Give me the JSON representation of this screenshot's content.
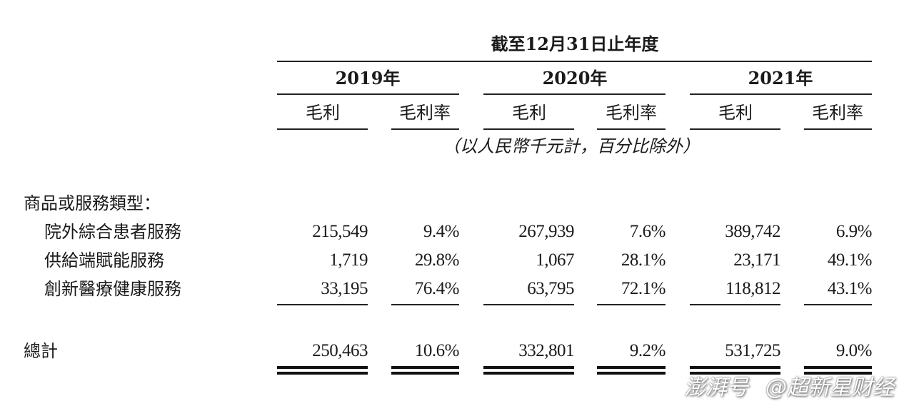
{
  "header": {
    "period": "截至12月31日止年度",
    "years": [
      "2019年",
      "2020年",
      "2021年"
    ],
    "subcols": [
      "毛利",
      "毛利率"
    ],
    "unit_note": "（以人民幣千元計，百分比除外）"
  },
  "section_label": "商品或服務類型：",
  "rows": [
    {
      "label": "院外綜合患者服務",
      "values": [
        "215,549",
        "9.4%",
        "267,939",
        "7.6%",
        "389,742",
        "6.9%"
      ]
    },
    {
      "label": "供給端賦能服務",
      "values": [
        "1,719",
        "29.8%",
        "1,067",
        "28.1%",
        "23,171",
        "49.1%"
      ]
    },
    {
      "label": "創新醫療健康服務",
      "values": [
        "33,195",
        "76.4%",
        "63,795",
        "72.1%",
        "118,812",
        "43.1%"
      ]
    }
  ],
  "total": {
    "label": "總計",
    "values": [
      "250,463",
      "10.6%",
      "332,801",
      "9.2%",
      "531,725",
      "9.0%"
    ]
  },
  "watermark": {
    "logo": "澎湃号",
    "account": "@超新星财经"
  }
}
